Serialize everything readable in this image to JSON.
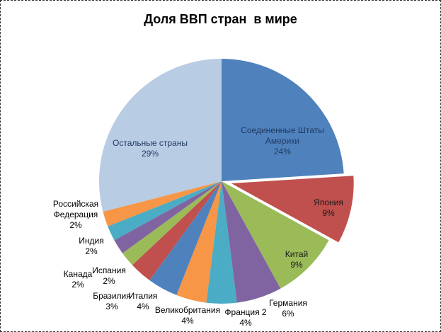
{
  "chart_data": {
    "type": "pie",
    "title": "Доля ВВП стран  в мире",
    "unit": "percent",
    "start_angle_deg": 0,
    "direction": "clockwise",
    "legend": "none",
    "background": "#FFFFFF",
    "slices": [
      {
        "id": "usa",
        "label": "Соединенные Штаты Америки",
        "value": 24,
        "pct": "24%",
        "color": "#4F81BD",
        "label_color": "#1E3A5F",
        "label_inside": true,
        "exploded": false
      },
      {
        "id": "japan",
        "label": "Япония",
        "value": 9,
        "pct": "9%",
        "color": "#C0504D",
        "label_color": "#1A1A1A",
        "label_inside": true,
        "exploded": true
      },
      {
        "id": "china",
        "label": "Китай",
        "value": 9,
        "pct": "9%",
        "color": "#9BBB59",
        "label_color": "#1A1A1A",
        "label_inside": true,
        "exploded": false
      },
      {
        "id": "germany",
        "label": "Германия",
        "value": 6,
        "pct": "6%",
        "color": "#8064A2",
        "label_color": "#000000",
        "label_inside": false,
        "exploded": false
      },
      {
        "id": "france",
        "label": "Франция 2",
        "value": 4,
        "pct": "4%",
        "color": "#4BACC6",
        "label_color": "#000000",
        "label_inside": false,
        "exploded": false
      },
      {
        "id": "uk",
        "label": "Великобритания",
        "value": 4,
        "pct": "4%",
        "color": "#F79646",
        "label_color": "#000000",
        "label_inside": false,
        "exploded": false
      },
      {
        "id": "italy",
        "label": "Италия",
        "value": 4,
        "pct": "4%",
        "color": "#4F81BD",
        "label_color": "#000000",
        "label_inside": false,
        "exploded": false
      },
      {
        "id": "brazil",
        "label": "Бразилия",
        "value": 3,
        "pct": "3%",
        "color": "#C0504D",
        "label_color": "#000000",
        "label_inside": false,
        "exploded": false
      },
      {
        "id": "spain",
        "label": "Испания",
        "value": 2,
        "pct": "2%",
        "color": "#9BBB59",
        "label_color": "#000000",
        "label_inside": false,
        "exploded": false
      },
      {
        "id": "canada",
        "label": "Канада",
        "value": 2,
        "pct": "2%",
        "color": "#8064A2",
        "label_color": "#000000",
        "label_inside": false,
        "exploded": false
      },
      {
        "id": "india",
        "label": "Индия",
        "value": 2,
        "pct": "2%",
        "color": "#4BACC6",
        "label_color": "#000000",
        "label_inside": false,
        "exploded": false
      },
      {
        "id": "russia",
        "label": "Российская Федерация",
        "value": 2,
        "pct": "2%",
        "color": "#F79646",
        "label_color": "#000000",
        "label_inside": false,
        "exploded": false
      },
      {
        "id": "others",
        "label": "Остальные страны",
        "value": 29,
        "pct": "29%",
        "color": "#B8CCE4",
        "label_color": "#1E3A5F",
        "label_inside": true,
        "exploded": false
      }
    ]
  },
  "frame": {
    "border_color": "#333333",
    "background": "#FFFFFF"
  }
}
